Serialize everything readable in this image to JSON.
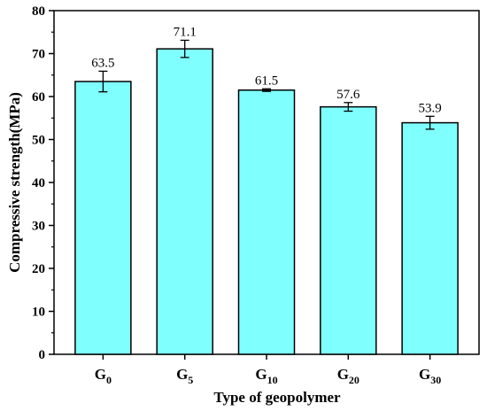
{
  "chart_data": {
    "type": "bar",
    "categories": [
      {
        "main": "G",
        "sub": "0"
      },
      {
        "main": "G",
        "sub": "5"
      },
      {
        "main": "G",
        "sub": "10"
      },
      {
        "main": "G",
        "sub": "20"
      },
      {
        "main": "G",
        "sub": "30"
      }
    ],
    "values": [
      63.5,
      71.1,
      61.5,
      57.6,
      53.9
    ],
    "value_labels": [
      "63.5",
      "71.1",
      "61.5",
      "57.6",
      "53.9"
    ],
    "errors": [
      2.4,
      2.0,
      0.3,
      1.0,
      1.5
    ],
    "xlabel": "Type of geopolymer",
    "ylabel": "Compressive strength(MPa)",
    "ylim": [
      0,
      80
    ],
    "yticks": [
      0,
      10,
      20,
      30,
      40,
      50,
      60,
      70,
      80
    ],
    "grid": false,
    "legend": "none",
    "bar_color": "#80FFFF",
    "edge_color": "#000000"
  }
}
